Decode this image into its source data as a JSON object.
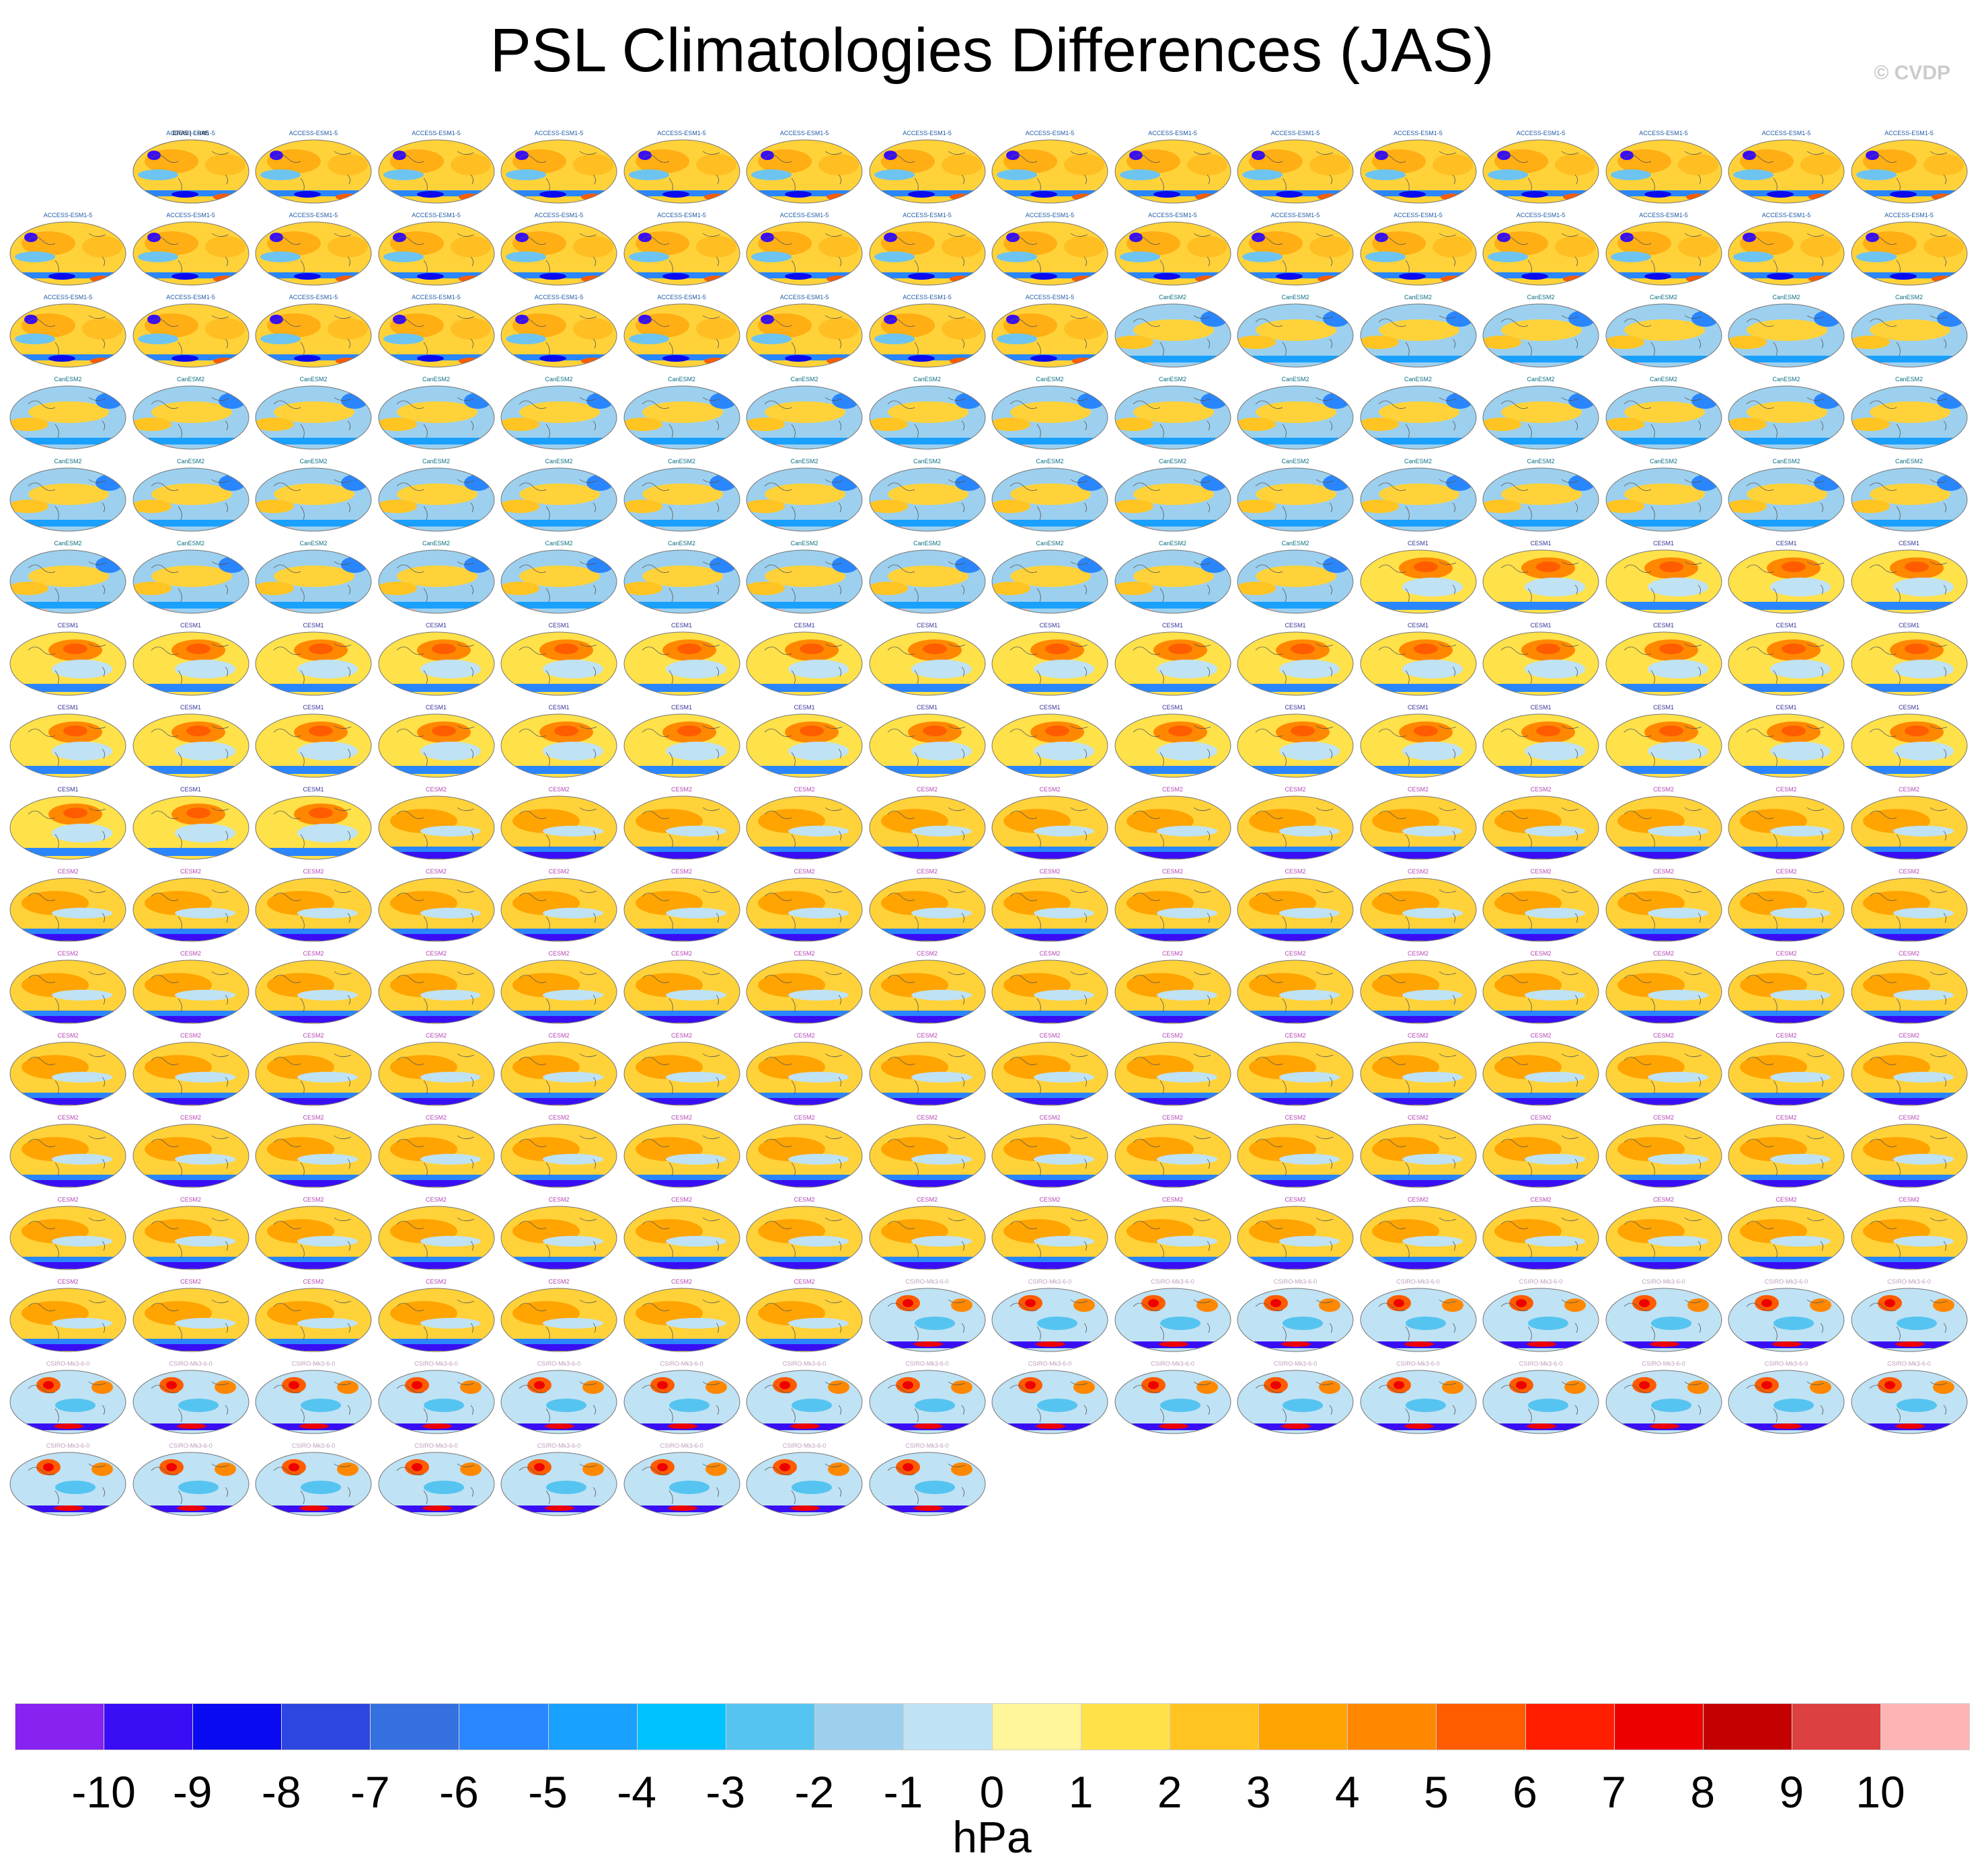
{
  "title": "PSL Climatologies Differences (JAS)",
  "copyright": "© CVDP",
  "units": "hPa",
  "colorbar": {
    "ticks": [
      "-10",
      "-9",
      "-8",
      "-7",
      "-6",
      "-5",
      "-4",
      "-3",
      "-2",
      "-1",
      "0",
      "1",
      "2",
      "3",
      "4",
      "5",
      "6",
      "7",
      "8",
      "9",
      "10"
    ],
    "colors": [
      "#8722f0",
      "#3a0ef5",
      "#0a0af0",
      "#2e46e0",
      "#3470e0",
      "#2a86ff",
      "#1aa0ff",
      "#00c2ff",
      "#56c4f0",
      "#9cd0ee",
      "#bfe2f4",
      "#fff59a",
      "#ffe14a",
      "#ffc422",
      "#ffa400",
      "#ff8800",
      "#ff5c00",
      "#ff1e00",
      "#ee0000",
      "#c40000",
      "#dc4040",
      "#ffb4b4"
    ]
  },
  "panels": {
    "reference_label": "ERA5 | ERA5",
    "groups": [
      {
        "name": "ACCESS-ESM1-5",
        "label_color": "#1f5aa6",
        "style": "warm",
        "count": 40
      },
      {
        "name": "CanESM2",
        "label_color": "#0a6e82",
        "style": "cool",
        "count": 50
      },
      {
        "name": "CESM1",
        "label_color": "#333399",
        "style": "warmcenter",
        "count": 40
      },
      {
        "name": "CESM2",
        "label_color": "#b347b3",
        "style": "warmband",
        "count": 100
      },
      {
        "name": "CSIRO-Mk3-6-0",
        "label_color": "#c0a0c0",
        "style": "diverge",
        "count": 33
      }
    ]
  }
}
